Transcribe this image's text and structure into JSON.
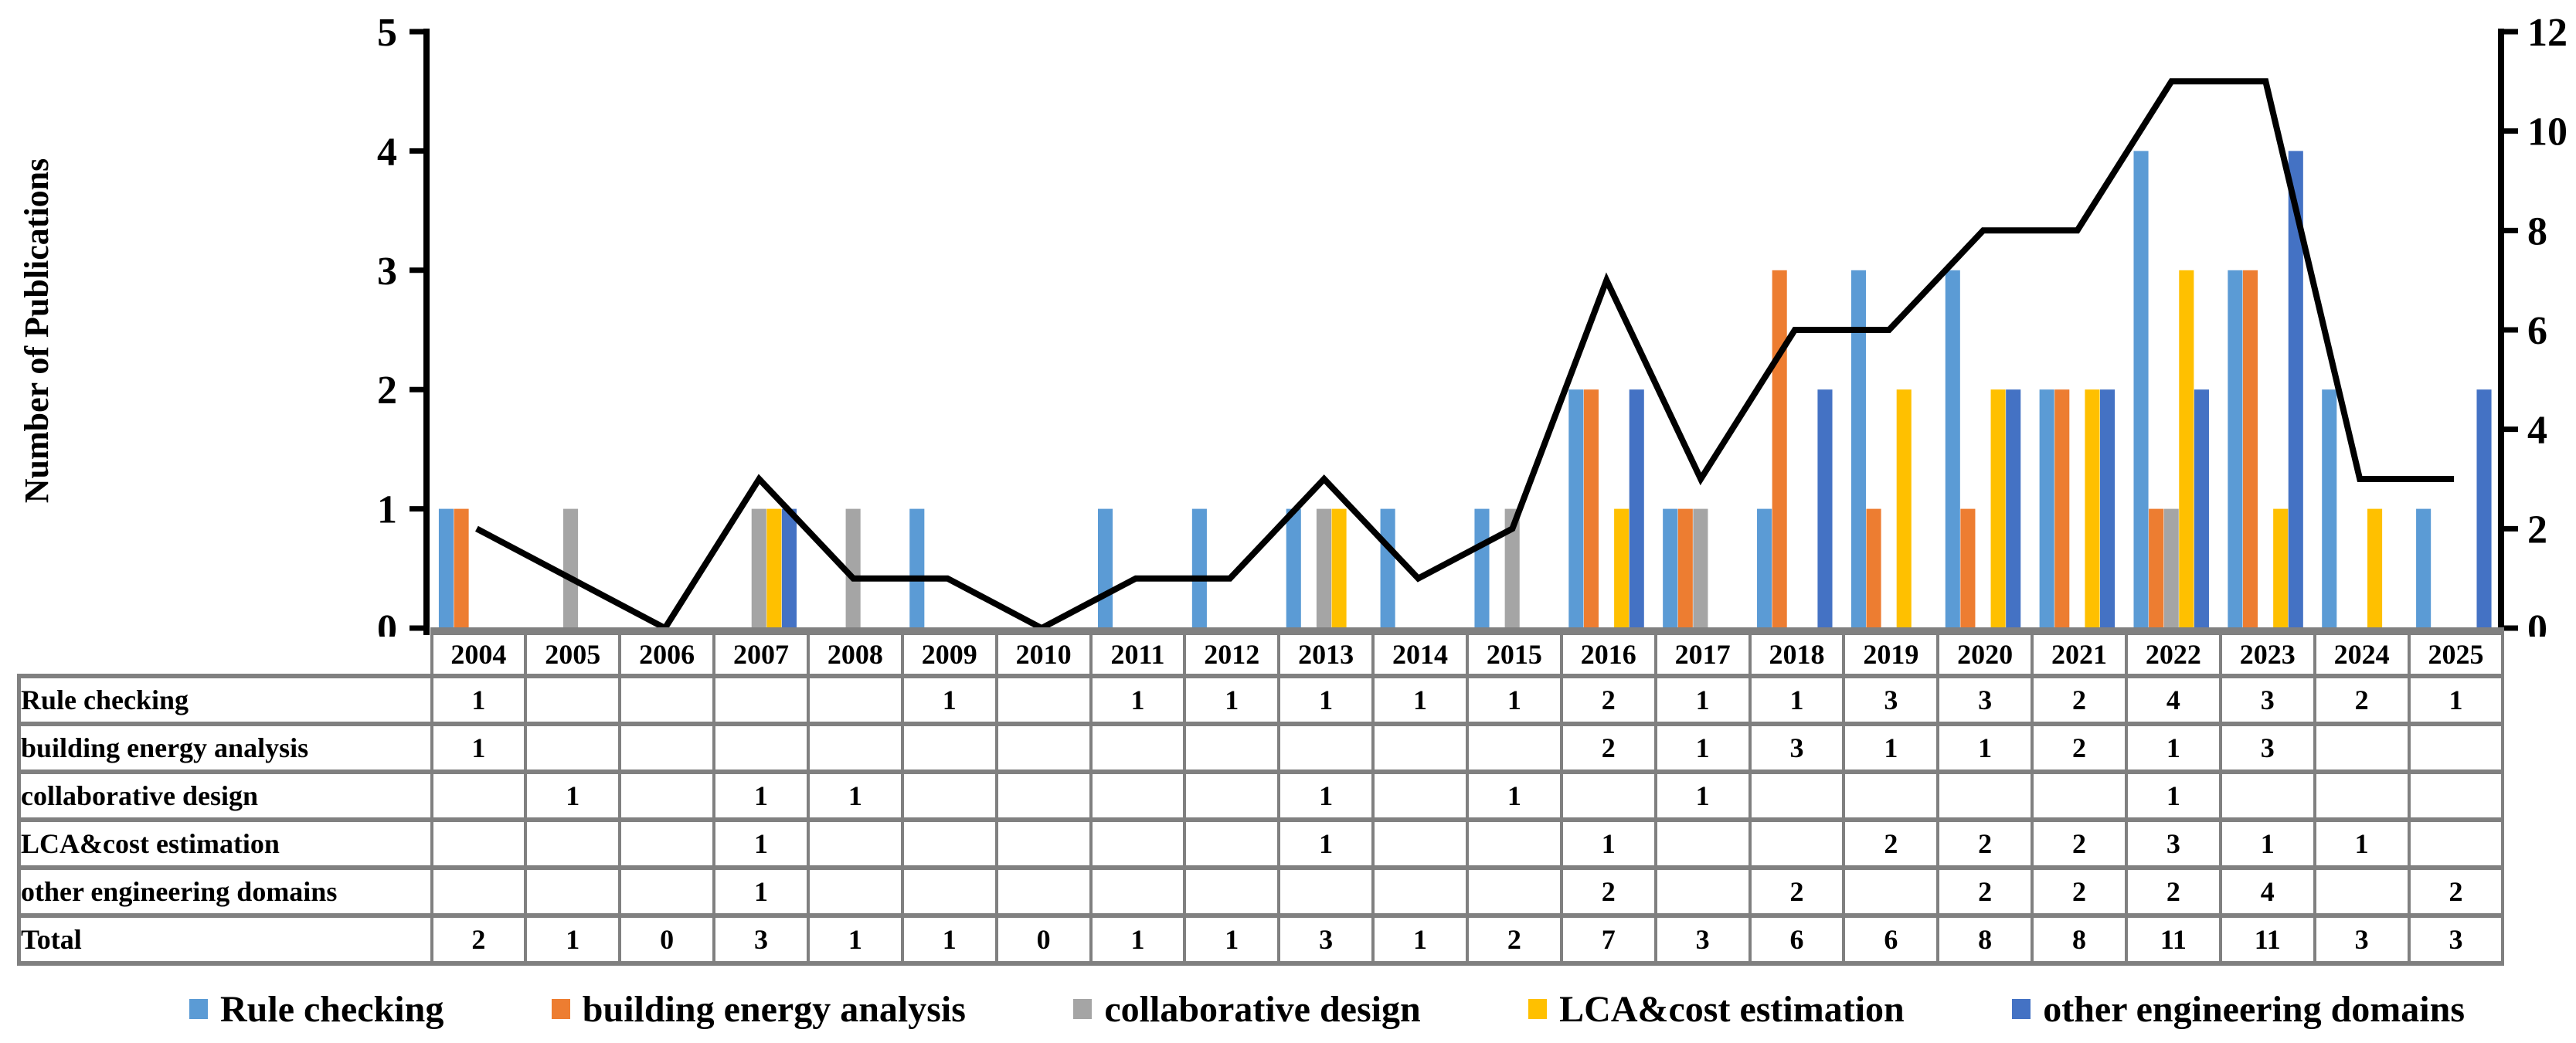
{
  "page": {
    "background": "#ffffff"
  },
  "chart_data": {
    "type": "bar+line",
    "title": "",
    "categories": [
      "2004",
      "2005",
      "2006",
      "2007",
      "2008",
      "2009",
      "2010",
      "2011",
      "2012",
      "2013",
      "2014",
      "2015",
      "2016",
      "2017",
      "2018",
      "2019",
      "2020",
      "2021",
      "2022",
      "2023",
      "2024",
      "2025"
    ],
    "series": [
      {
        "name": "Rule checking",
        "color": "#5B9BD5",
        "values": [
          1,
          0,
          0,
          0,
          0,
          1,
          0,
          1,
          1,
          1,
          1,
          1,
          2,
          1,
          1,
          3,
          3,
          2,
          4,
          3,
          2,
          1
        ]
      },
      {
        "name": "building energy analysis",
        "color": "#ED7D31",
        "values": [
          1,
          0,
          0,
          0,
          0,
          0,
          0,
          0,
          0,
          0,
          0,
          0,
          2,
          1,
          3,
          1,
          1,
          2,
          1,
          3,
          0,
          0
        ]
      },
      {
        "name": "collaborative design",
        "color": "#A5A5A5",
        "values": [
          0,
          1,
          0,
          1,
          1,
          0,
          0,
          0,
          0,
          1,
          0,
          1,
          0,
          1,
          0,
          0,
          0,
          0,
          1,
          0,
          0,
          0
        ]
      },
      {
        "name": "LCA&cost estimation",
        "color": "#FFC000",
        "values": [
          0,
          0,
          0,
          1,
          0,
          0,
          0,
          0,
          0,
          1,
          0,
          0,
          1,
          0,
          0,
          2,
          2,
          2,
          3,
          1,
          1,
          0
        ]
      },
      {
        "name": "other engineering domains",
        "color": "#4472C4",
        "values": [
          0,
          0,
          0,
          1,
          0,
          0,
          0,
          0,
          0,
          0,
          0,
          0,
          2,
          0,
          2,
          0,
          2,
          2,
          2,
          4,
          0,
          2
        ]
      }
    ],
    "line_series": {
      "name": "Total",
      "color": "#000000",
      "values": [
        2,
        1,
        0,
        3,
        1,
        1,
        0,
        1,
        1,
        3,
        1,
        2,
        7,
        3,
        6,
        6,
        8,
        8,
        11,
        11,
        3,
        3
      ]
    },
    "y_left": {
      "title": "Number of Publications",
      "min": 0,
      "max": 5,
      "ticks": [
        0,
        1,
        2,
        3,
        4,
        5
      ]
    },
    "y_right": {
      "min": 0,
      "max": 12,
      "ticks": [
        0,
        2,
        4,
        6,
        8,
        10,
        12
      ]
    },
    "grid": false,
    "legend_position": "bottom"
  },
  "table": {
    "corner_label": "",
    "years": [
      "2004",
      "2005",
      "2006",
      "2007",
      "2008",
      "2009",
      "2010",
      "2011",
      "2012",
      "2013",
      "2014",
      "2015",
      "2016",
      "2017",
      "2018",
      "2019",
      "2020",
      "2021",
      "2022",
      "2023",
      "2024",
      "2025"
    ],
    "rows": [
      {
        "label": "Rule checking",
        "values": [
          "1",
          "",
          "",
          "",
          "",
          "1",
          "",
          "1",
          "1",
          "1",
          "1",
          "1",
          "2",
          "1",
          "1",
          "3",
          "3",
          "2",
          "4",
          "3",
          "2",
          "1"
        ]
      },
      {
        "label": "building energy analysis",
        "values": [
          "1",
          "",
          "",
          "",
          "",
          "",
          "",
          "",
          "",
          "",
          "",
          "",
          "2",
          "1",
          "3",
          "1",
          "1",
          "2",
          "1",
          "3",
          "",
          ""
        ]
      },
      {
        "label": "collaborative design",
        "values": [
          "",
          "1",
          "",
          "1",
          "1",
          "",
          "",
          "",
          "",
          "1",
          "",
          "1",
          "",
          "1",
          "",
          "",
          "",
          "",
          "1",
          "",
          "",
          ""
        ]
      },
      {
        "label": "LCA&cost estimation",
        "values": [
          "",
          "",
          "",
          "1",
          "",
          "",
          "",
          "",
          "",
          "1",
          "",
          "",
          "1",
          "",
          "",
          "2",
          "2",
          "2",
          "3",
          "1",
          "1",
          ""
        ]
      },
      {
        "label": "other engineering domains",
        "values": [
          "",
          "",
          "",
          "1",
          "",
          "",
          "",
          "",
          "",
          "",
          "",
          "",
          "2",
          "",
          "2",
          "",
          "2",
          "2",
          "2",
          "4",
          "",
          "2"
        ]
      },
      {
        "label": "Total",
        "values": [
          "2",
          "1",
          "0",
          "3",
          "1",
          "1",
          "0",
          "1",
          "1",
          "3",
          "1",
          "2",
          "7",
          "3",
          "6",
          "6",
          "8",
          "8",
          "11",
          "11",
          "3",
          "3"
        ]
      }
    ]
  },
  "legend": {
    "items": [
      {
        "label": "Rule checking",
        "color": "#5B9BD5"
      },
      {
        "label": "building energy analysis",
        "color": "#ED7D31"
      },
      {
        "label": "collaborative design",
        "color": "#A5A5A5"
      },
      {
        "label": "LCA&cost estimation",
        "color": "#FFC000"
      },
      {
        "label": "other engineering domains",
        "color": "#4472C4"
      }
    ]
  }
}
